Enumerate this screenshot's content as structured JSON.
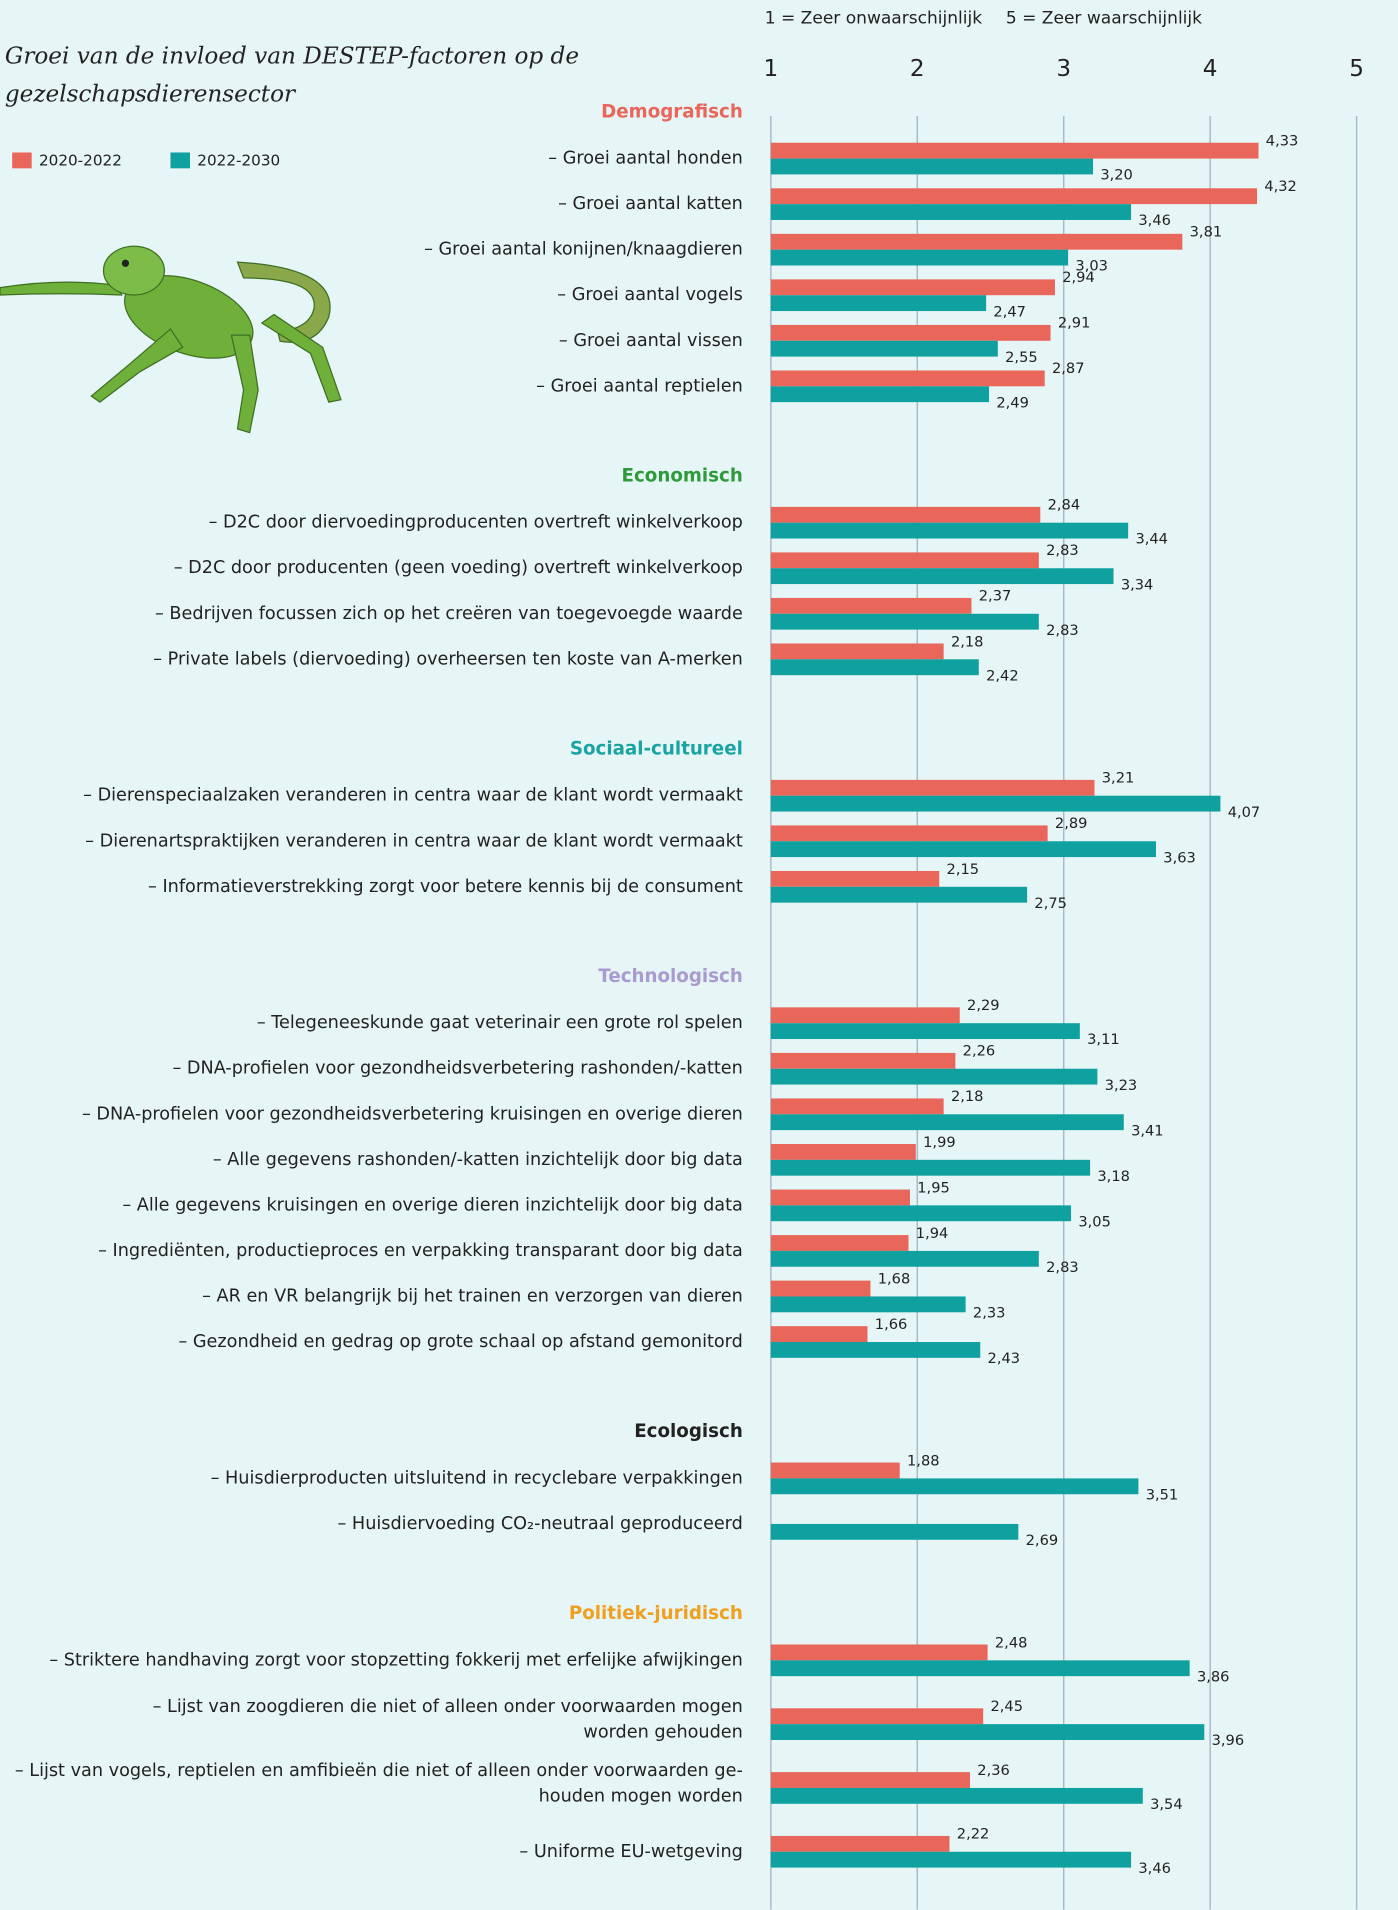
{
  "chart_data": {
    "type": "bar",
    "orientation": "horizontal",
    "title": [
      "Groei van de invloed van DESTEP-factoren op de",
      "gezelschapsdierensector"
    ],
    "scale_notes": [
      "1 = Zeer onwaarschijnlijk",
      "5 = Zeer waarschijnlijk"
    ],
    "xlim": [
      1,
      5
    ],
    "xticks": [
      1,
      2,
      3,
      4,
      5
    ],
    "grid": true,
    "legend": "top-left",
    "groups": [
      {
        "name": "Demografisch",
        "color": "#e8665a",
        "categories": [
          "– Groei aantal honden",
          "– Groei aantal katten",
          "– Groei aantal konijnen/knaagdieren",
          "– Groei aantal vogels",
          "– Groei aantal vissen",
          "– Groei aantal reptielen"
        ]
      },
      {
        "name": "Economisch",
        "color": "#2e9a3b",
        "categories": [
          "– D2C door diervoedingproducenten overtreft winkelverkoop",
          "– D2C door producenten (geen voeding) overtreft winkelverkoop",
          "– Bedrijven focussen zich op het creëren van toegevoegde waarde",
          "– Private labels (diervoeding) overheersen ten koste van A-merken"
        ]
      },
      {
        "name": "Sociaal-cultureel",
        "color": "#1aa3a3",
        "categories": [
          "– Dierenspeciaalzaken veranderen in centra waar de klant wordt vermaakt",
          "– Dierenartspraktijken veranderen in centra waar de klant wordt vermaakt",
          "– Informatieverstrekking zorgt voor betere kennis bij de consument"
        ]
      },
      {
        "name": "Technologisch",
        "color": "#a99bcf",
        "categories": [
          "– Telegeneeskunde gaat veterinair een grote rol spelen",
          "– DNA-profielen voor gezondheidsverbetering rashonden/-katten",
          "– DNA-profielen voor gezondheidsverbetering kruisingen en overige dieren",
          "– Alle gegevens rashonden/-katten inzichtelijk door big data",
          "– Alle gegevens kruisingen en overige dieren inzichtelijk door big data",
          "– Ingrediënten, productieproces en verpakking transparant door big data",
          "– AR en VR belangrijk bij het trainen en verzorgen van dieren",
          "– Gezondheid en gedrag op grote schaal op afstand gemonitord"
        ]
      },
      {
        "name": "Ecologisch",
        "color": "#222222",
        "categories": [
          "– Huisdierproducten uitsluitend in recyclebare verpakkingen",
          "– Huisdiervoeding CO₂-neutraal geproduceerd"
        ]
      },
      {
        "name": "Politiek-juridisch",
        "color": "#f0a020",
        "categories": [
          "– Striktere handhaving zorgt voor stopzetting fokkerij met erfelijke afwijkingen",
          [
            "– Lijst van zoogdieren die niet of alleen onder voorwaarden mogen",
            "worden gehouden"
          ],
          [
            "– Lijst van vogels, reptielen en amfibieën die niet of alleen onder voorwaarden ge-",
            "houden mogen worden"
          ],
          "– Uniforme EU-wetgeving"
        ]
      }
    ],
    "series": [
      {
        "name": "2020-2022",
        "color": "#e8665a",
        "values": [
          4.33,
          4.32,
          3.81,
          2.94,
          2.91,
          2.87,
          2.84,
          2.83,
          2.37,
          2.18,
          3.21,
          2.89,
          2.15,
          2.29,
          2.26,
          2.18,
          1.99,
          1.95,
          1.94,
          1.68,
          1.66,
          1.88,
          null,
          2.48,
          2.45,
          2.36,
          2.22
        ],
        "value_labels": [
          "4,33",
          "4,32",
          "3,81",
          "2,94",
          "2,91",
          "2,87",
          "2,84",
          "2,83",
          "2,37",
          "2,18",
          "3,21",
          "2,89",
          "2,15",
          "2,29",
          "2,26",
          "2,18",
          "1,99",
          "1,95",
          "1,94",
          "1,68",
          "1,66",
          "1,88",
          null,
          "2,48",
          "2,45",
          "2,36",
          "2,22"
        ]
      },
      {
        "name": "2022-2030",
        "color": "#0fa19f",
        "values": [
          3.2,
          3.46,
          3.03,
          2.47,
          2.55,
          2.49,
          3.44,
          3.34,
          2.83,
          2.42,
          4.07,
          3.63,
          2.75,
          3.11,
          3.23,
          3.41,
          3.18,
          3.05,
          2.83,
          2.33,
          2.43,
          3.51,
          2.69,
          3.86,
          3.96,
          3.54,
          3.46
        ],
        "value_labels": [
          "3,20",
          "3,46",
          "3,03",
          "2,47",
          "2,55",
          "2,49",
          "3,44",
          "3,34",
          "2,83",
          "2,42",
          "4,07",
          "3,63",
          "2,75",
          "3,11",
          "3,23",
          "3,41",
          "3,18",
          "3,05",
          "2,83",
          "2,33",
          "2,43",
          "3,51",
          "2,69",
          "3,86",
          "3,96",
          "3,54",
          "3,46"
        ]
      }
    ]
  }
}
